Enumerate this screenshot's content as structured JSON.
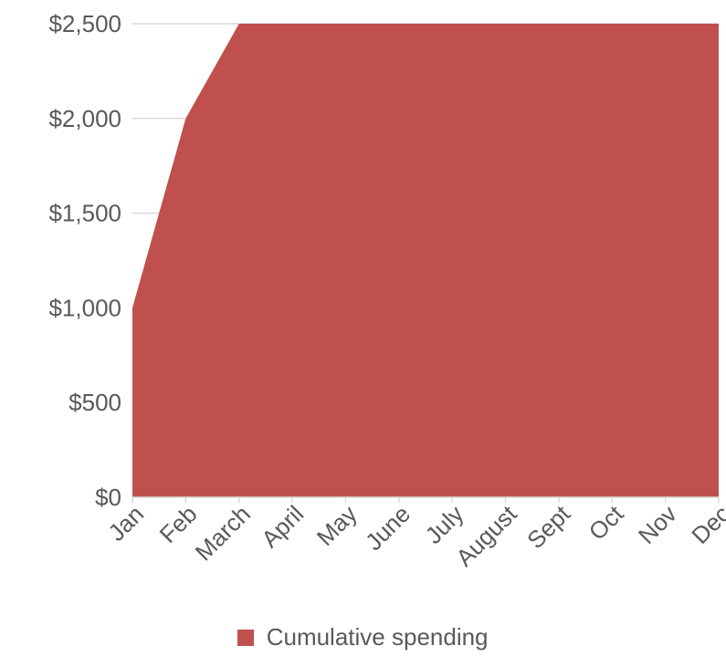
{
  "chart_data": {
    "type": "area",
    "title": "",
    "xlabel": "",
    "ylabel": "",
    "categories": [
      "Jan",
      "Feb",
      "March",
      "April",
      "May",
      "June",
      "July",
      "August",
      "Sept",
      "Oct",
      "Nov",
      "Dec"
    ],
    "series": [
      {
        "name": "Cumulative spending",
        "color": "#C0504D",
        "values": [
          1000,
          2000,
          2500,
          2500,
          2500,
          2500,
          2500,
          2500,
          2500,
          2500,
          2500,
          2500
        ]
      }
    ],
    "ylim": [
      0,
      2500
    ],
    "y_ticks": [
      0,
      500,
      1000,
      1500,
      2000,
      2500
    ],
    "y_tick_labels": [
      "$0",
      "$500",
      "$1,000",
      "$1,500",
      "$2,000",
      "$2,500"
    ],
    "grid": true,
    "legend_position": "bottom"
  }
}
